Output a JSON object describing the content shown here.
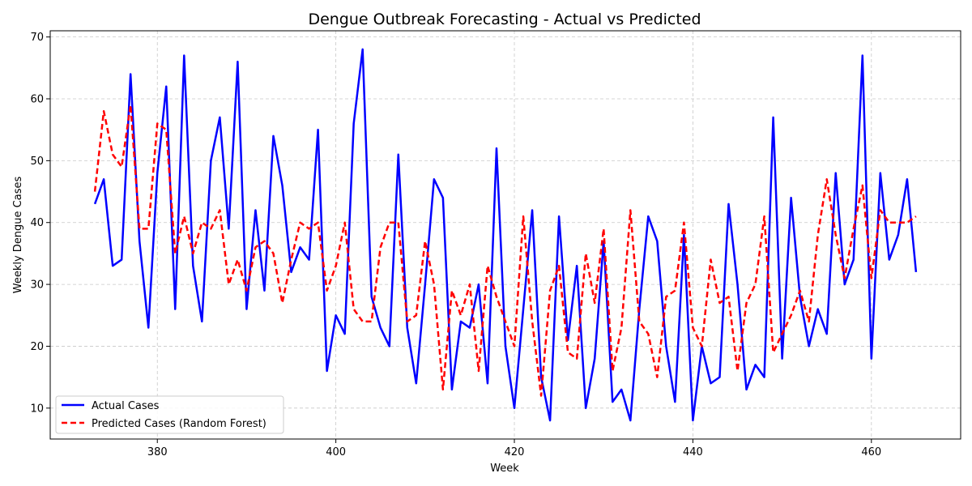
{
  "chart_data": {
    "type": "line",
    "title": "Dengue Outbreak Forecasting - Actual vs Predicted",
    "xlabel": "Week",
    "ylabel": "Weekly Dengue Cases",
    "xlim": [
      368,
      470
    ],
    "ylim": [
      5,
      71
    ],
    "xticks": [
      380,
      400,
      420,
      440,
      460
    ],
    "yticks": [
      10,
      20,
      30,
      40,
      50,
      60,
      70
    ],
    "grid": true,
    "legend_position": "lower-left",
    "x": [
      373,
      374,
      375,
      376,
      377,
      378,
      379,
      380,
      381,
      382,
      383,
      384,
      385,
      386,
      387,
      388,
      389,
      390,
      391,
      392,
      393,
      394,
      395,
      396,
      397,
      398,
      399,
      400,
      401,
      402,
      403,
      404,
      405,
      406,
      407,
      408,
      409,
      410,
      411,
      412,
      413,
      414,
      415,
      416,
      417,
      418,
      419,
      420,
      421,
      422,
      423,
      424,
      425,
      426,
      427,
      428,
      429,
      430,
      431,
      432,
      433,
      434,
      435,
      436,
      437,
      438,
      439,
      440,
      441,
      442,
      443,
      444,
      445,
      446,
      447,
      448,
      449,
      450,
      451,
      452,
      453,
      454,
      455,
      456,
      457,
      458,
      459,
      460,
      461,
      462,
      463,
      464,
      465
    ],
    "series": [
      {
        "name": "Actual Cases",
        "color": "#0000ff",
        "style": "solid",
        "values": [
          43,
          47,
          33,
          34,
          64,
          37,
          23,
          48,
          62,
          26,
          67,
          33,
          24,
          50,
          57,
          39,
          66,
          26,
          42,
          29,
          54,
          46,
          32,
          36,
          34,
          55,
          16,
          25,
          22,
          56,
          68,
          28,
          23,
          20,
          51,
          23,
          14,
          30,
          47,
          44,
          13,
          24,
          23,
          30,
          14,
          52,
          20,
          10,
          26,
          42,
          15,
          8,
          41,
          21,
          33,
          10,
          18,
          37,
          11,
          13,
          8,
          26,
          41,
          37,
          20,
          11,
          38,
          8,
          20,
          14,
          15,
          43,
          30,
          13,
          17,
          15,
          57,
          18,
          44,
          28,
          20,
          26,
          22,
          48,
          30,
          34,
          67,
          18,
          48,
          34,
          38,
          47,
          32
        ]
      },
      {
        "name": "Predicted Cases (Random Forest)",
        "color": "#ff0000",
        "style": "dashed",
        "values": [
          45,
          58,
          51,
          49,
          59,
          39,
          39,
          56,
          55,
          35,
          41,
          35,
          40,
          39,
          42,
          30,
          34,
          29,
          36,
          37,
          35,
          27,
          34,
          40,
          39,
          40,
          29,
          33,
          40,
          26,
          24,
          24,
          36,
          40,
          40,
          24,
          25,
          37,
          30,
          13,
          29,
          25,
          30,
          16,
          33,
          28,
          24,
          20,
          41,
          24,
          12,
          29,
          33,
          19,
          18,
          35,
          27,
          39,
          16,
          23,
          42,
          24,
          22,
          15,
          28,
          29,
          40,
          23,
          20,
          34,
          27,
          28,
          16,
          27,
          30,
          41,
          19,
          22,
          25,
          29,
          24,
          38,
          47,
          38,
          31,
          39,
          46,
          31,
          42,
          40,
          40,
          40,
          41
        ]
      }
    ]
  }
}
